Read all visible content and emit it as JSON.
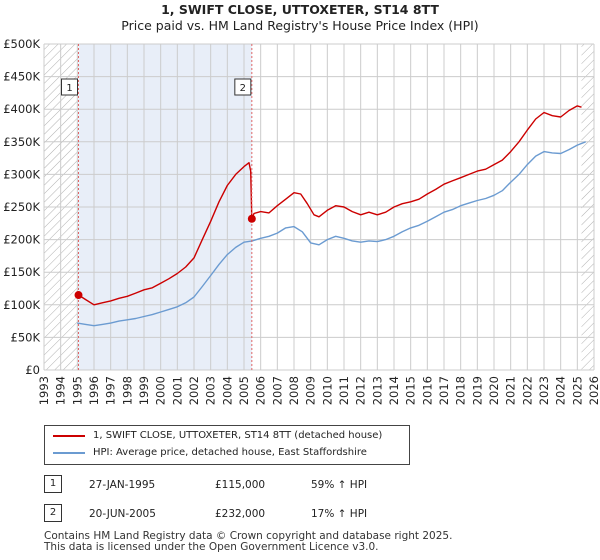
{
  "title": "1, SWIFT CLOSE, UTTOXETER, ST14 8TT",
  "subtitle": "Price paid vs. HM Land Registry's House Price Index (HPI)",
  "colors": {
    "property": "#cc0000",
    "hpi": "#6b9bd1",
    "shade": "#e8eef8",
    "hatch": "#b0b0b0",
    "grid": "#cccccc",
    "marker_line": "#e06666"
  },
  "chart_data": {
    "type": "line",
    "title": "1, SWIFT CLOSE, UTTOXETER, ST14 8TT",
    "subtitle": "Price paid vs. HM Land Registry's House Price Index (HPI)",
    "xlim": [
      1993.0,
      2026.0
    ],
    "ylim": [
      0,
      500000
    ],
    "x_ticks": [
      1993,
      1994,
      1995,
      1996,
      1997,
      1998,
      1999,
      2000,
      2001,
      2002,
      2003,
      2004,
      2005,
      2006,
      2007,
      2008,
      2009,
      2010,
      2011,
      2012,
      2013,
      2014,
      2015,
      2016,
      2017,
      2018,
      2019,
      2020,
      2021,
      2022,
      2023,
      2024,
      2025,
      2026
    ],
    "y_ticks": [
      0,
      50000,
      100000,
      150000,
      200000,
      250000,
      300000,
      350000,
      400000,
      450000,
      500000
    ],
    "y_tick_labels": [
      "£0",
      "£50K",
      "£100K",
      "£150K",
      "£200K",
      "£250K",
      "£300K",
      "£350K",
      "£400K",
      "£450K",
      "£500K"
    ],
    "grid": true,
    "shaded_range": [
      1995.07,
      2005.47
    ],
    "hatched_ranges": [
      [
        1993.0,
        1995.07
      ],
      [
        2025.25,
        2026.0
      ]
    ],
    "series": [
      {
        "name": "1, SWIFT CLOSE, UTTOXETER, ST14 8TT (detached house)",
        "color": "#cc0000",
        "points": [
          [
            1995.07,
            115000
          ],
          [
            1995.5,
            108000
          ],
          [
            1996.0,
            100000
          ],
          [
            1996.5,
            103000
          ],
          [
            1997.0,
            106000
          ],
          [
            1997.5,
            110000
          ],
          [
            1998.0,
            113000
          ],
          [
            1998.5,
            118000
          ],
          [
            1999.0,
            123000
          ],
          [
            1999.5,
            126000
          ],
          [
            2000.0,
            133000
          ],
          [
            2000.5,
            140000
          ],
          [
            2001.0,
            148000
          ],
          [
            2001.5,
            158000
          ],
          [
            2002.0,
            172000
          ],
          [
            2002.5,
            200000
          ],
          [
            2003.0,
            228000
          ],
          [
            2003.5,
            258000
          ],
          [
            2004.0,
            283000
          ],
          [
            2004.5,
            300000
          ],
          [
            2005.0,
            312000
          ],
          [
            2005.3,
            318000
          ],
          [
            2005.4,
            305000
          ],
          [
            2005.47,
            232000
          ],
          [
            2005.6,
            240000
          ],
          [
            2006.0,
            243000
          ],
          [
            2006.5,
            241000
          ],
          [
            2007.0,
            252000
          ],
          [
            2007.5,
            262000
          ],
          [
            2008.0,
            272000
          ],
          [
            2008.4,
            270000
          ],
          [
            2008.8,
            255000
          ],
          [
            2009.2,
            238000
          ],
          [
            2009.5,
            235000
          ],
          [
            2010.0,
            245000
          ],
          [
            2010.5,
            252000
          ],
          [
            2011.0,
            250000
          ],
          [
            2011.5,
            243000
          ],
          [
            2012.0,
            238000
          ],
          [
            2012.5,
            242000
          ],
          [
            2013.0,
            238000
          ],
          [
            2013.5,
            242000
          ],
          [
            2014.0,
            250000
          ],
          [
            2014.5,
            255000
          ],
          [
            2015.0,
            258000
          ],
          [
            2015.5,
            262000
          ],
          [
            2016.0,
            270000
          ],
          [
            2016.5,
            277000
          ],
          [
            2017.0,
            285000
          ],
          [
            2017.5,
            290000
          ],
          [
            2018.0,
            295000
          ],
          [
            2018.5,
            300000
          ],
          [
            2019.0,
            305000
          ],
          [
            2019.5,
            308000
          ],
          [
            2020.0,
            315000
          ],
          [
            2020.5,
            322000
          ],
          [
            2021.0,
            335000
          ],
          [
            2021.5,
            350000
          ],
          [
            2022.0,
            368000
          ],
          [
            2022.5,
            385000
          ],
          [
            2023.0,
            395000
          ],
          [
            2023.5,
            390000
          ],
          [
            2024.0,
            388000
          ],
          [
            2024.5,
            398000
          ],
          [
            2025.0,
            405000
          ],
          [
            2025.25,
            403000
          ]
        ]
      },
      {
        "name": "HPI: Average price, detached house, East Staffordshire",
        "color": "#6b9bd1",
        "points": [
          [
            1995.0,
            72000
          ],
          [
            1995.5,
            70000
          ],
          [
            1996.0,
            68000
          ],
          [
            1996.5,
            70000
          ],
          [
            1997.0,
            72000
          ],
          [
            1997.5,
            75000
          ],
          [
            1998.0,
            77000
          ],
          [
            1998.5,
            79000
          ],
          [
            1999.0,
            82000
          ],
          [
            1999.5,
            85000
          ],
          [
            2000.0,
            89000
          ],
          [
            2000.5,
            93000
          ],
          [
            2001.0,
            97000
          ],
          [
            2001.5,
            103000
          ],
          [
            2002.0,
            112000
          ],
          [
            2002.5,
            128000
          ],
          [
            2003.0,
            145000
          ],
          [
            2003.5,
            162000
          ],
          [
            2004.0,
            177000
          ],
          [
            2004.5,
            188000
          ],
          [
            2005.0,
            196000
          ],
          [
            2005.5,
            198000
          ],
          [
            2006.0,
            202000
          ],
          [
            2006.5,
            205000
          ],
          [
            2007.0,
            210000
          ],
          [
            2007.5,
            218000
          ],
          [
            2008.0,
            220000
          ],
          [
            2008.5,
            212000
          ],
          [
            2009.0,
            195000
          ],
          [
            2009.5,
            192000
          ],
          [
            2010.0,
            200000
          ],
          [
            2010.5,
            205000
          ],
          [
            2011.0,
            202000
          ],
          [
            2011.5,
            198000
          ],
          [
            2012.0,
            196000
          ],
          [
            2012.5,
            198000
          ],
          [
            2013.0,
            197000
          ],
          [
            2013.5,
            200000
          ],
          [
            2014.0,
            205000
          ],
          [
            2014.5,
            212000
          ],
          [
            2015.0,
            218000
          ],
          [
            2015.5,
            222000
          ],
          [
            2016.0,
            228000
          ],
          [
            2016.5,
            235000
          ],
          [
            2017.0,
            242000
          ],
          [
            2017.5,
            246000
          ],
          [
            2018.0,
            252000
          ],
          [
            2018.5,
            256000
          ],
          [
            2019.0,
            260000
          ],
          [
            2019.5,
            263000
          ],
          [
            2020.0,
            268000
          ],
          [
            2020.5,
            275000
          ],
          [
            2021.0,
            288000
          ],
          [
            2021.5,
            300000
          ],
          [
            2022.0,
            315000
          ],
          [
            2022.5,
            328000
          ],
          [
            2023.0,
            335000
          ],
          [
            2023.5,
            333000
          ],
          [
            2024.0,
            332000
          ],
          [
            2024.5,
            338000
          ],
          [
            2025.0,
            345000
          ],
          [
            2025.5,
            350000
          ]
        ]
      }
    ],
    "markers": [
      {
        "label": "1",
        "x": 1995.07,
        "y": 115000
      },
      {
        "label": "2",
        "x": 2005.47,
        "y": 232000
      }
    ]
  },
  "legend": {
    "items": [
      {
        "label": "1, SWIFT CLOSE, UTTOXETER, ST14 8TT (detached house)",
        "color": "#cc0000"
      },
      {
        "label": "HPI: Average price, detached house, East Staffordshire",
        "color": "#6b9bd1"
      }
    ]
  },
  "transactions": [
    {
      "num": "1",
      "date": "27-JAN-1995",
      "price": "£115,000",
      "hpi": "59% ↑ HPI"
    },
    {
      "num": "2",
      "date": "20-JUN-2005",
      "price": "£232,000",
      "hpi": "17% ↑ HPI"
    }
  ],
  "footer": {
    "line1": "Contains HM Land Registry data © Crown copyright and database right 2025.",
    "line2": "This data is licensed under the Open Government Licence v3.0."
  }
}
